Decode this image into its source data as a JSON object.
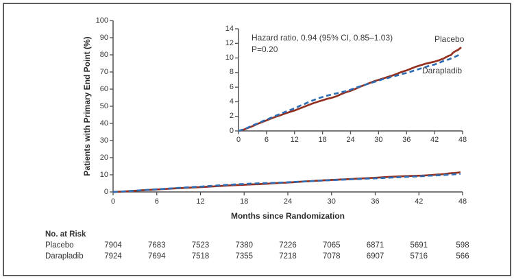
{
  "chart_data": {
    "type": "line",
    "title": "",
    "xlabel": "Months since Randomization",
    "ylabel": "Patients with Primary End Point (%)",
    "xlim": [
      0,
      48
    ],
    "x_ticks": [
      0,
      6,
      12,
      18,
      24,
      30,
      36,
      42,
      48
    ],
    "main_panel": {
      "ylim": [
        0,
        100
      ],
      "y_ticks": [
        0,
        10,
        20,
        30,
        40,
        50,
        60,
        70,
        80,
        90,
        100
      ]
    },
    "inset_panel": {
      "ylim": [
        0,
        14
      ],
      "y_ticks": [
        0,
        2,
        4,
        6,
        8,
        10,
        12,
        14
      ]
    },
    "annotation": {
      "line1": "Hazard ratio, 0.94 (95% CI, 0.85–1.03)",
      "line2": "P=0.20"
    },
    "grid": false,
    "legend_position": "end-of-line-labels",
    "series": [
      {
        "name": "Placebo",
        "color": "#93301f",
        "style": "solid",
        "points": [
          [
            0,
            0
          ],
          [
            1,
            0.15
          ],
          [
            2,
            0.4
          ],
          [
            3,
            0.65
          ],
          [
            4,
            0.95
          ],
          [
            5,
            1.2
          ],
          [
            6,
            1.45
          ],
          [
            7,
            1.7
          ],
          [
            8,
            1.95
          ],
          [
            9,
            2.15
          ],
          [
            10,
            2.4
          ],
          [
            11,
            2.6
          ],
          [
            12,
            2.8
          ],
          [
            13,
            3.05
          ],
          [
            14,
            3.3
          ],
          [
            15,
            3.55
          ],
          [
            16,
            3.8
          ],
          [
            17,
            4.0
          ],
          [
            18,
            4.2
          ],
          [
            19,
            4.4
          ],
          [
            20,
            4.55
          ],
          [
            21,
            4.75
          ],
          [
            22,
            5.05
          ],
          [
            23,
            5.3
          ],
          [
            24,
            5.5
          ],
          [
            25,
            5.75
          ],
          [
            26,
            6.05
          ],
          [
            27,
            6.3
          ],
          [
            28,
            6.55
          ],
          [
            29,
            6.8
          ],
          [
            30,
            7.0
          ],
          [
            31,
            7.2
          ],
          [
            32,
            7.4
          ],
          [
            33,
            7.6
          ],
          [
            34,
            7.85
          ],
          [
            35,
            8.1
          ],
          [
            36,
            8.3
          ],
          [
            37,
            8.55
          ],
          [
            38,
            8.8
          ],
          [
            39,
            9.0
          ],
          [
            40,
            9.2
          ],
          [
            41,
            9.35
          ],
          [
            42,
            9.5
          ],
          [
            43,
            9.7
          ],
          [
            44,
            9.95
          ],
          [
            45,
            10.3
          ],
          [
            45.5,
            10.4
          ],
          [
            46,
            10.75
          ],
          [
            46.5,
            10.95
          ],
          [
            47,
            11.1
          ],
          [
            47.7,
            11.45
          ]
        ]
      },
      {
        "name": "Darapladib",
        "color": "#2e6db4",
        "style": "dashed",
        "points": [
          [
            0,
            0
          ],
          [
            1,
            0.2
          ],
          [
            2,
            0.45
          ],
          [
            3,
            0.75
          ],
          [
            4,
            1.0
          ],
          [
            5,
            1.3
          ],
          [
            6,
            1.55
          ],
          [
            7,
            1.8
          ],
          [
            8,
            2.1
          ],
          [
            9,
            2.35
          ],
          [
            10,
            2.6
          ],
          [
            11,
            2.85
          ],
          [
            12,
            3.1
          ],
          [
            13,
            3.4
          ],
          [
            14,
            3.65
          ],
          [
            15,
            3.95
          ],
          [
            16,
            4.2
          ],
          [
            17,
            4.45
          ],
          [
            18,
            4.65
          ],
          [
            19,
            4.85
          ],
          [
            20,
            5.0
          ],
          [
            21,
            5.15
          ],
          [
            22,
            5.3
          ],
          [
            23,
            5.45
          ],
          [
            24,
            5.65
          ],
          [
            25,
            5.9
          ],
          [
            26,
            6.1
          ],
          [
            27,
            6.3
          ],
          [
            28,
            6.5
          ],
          [
            29,
            6.7
          ],
          [
            30,
            6.9
          ],
          [
            31,
            7.1
          ],
          [
            32,
            7.25
          ],
          [
            33,
            7.45
          ],
          [
            34,
            7.6
          ],
          [
            35,
            7.8
          ],
          [
            36,
            7.95
          ],
          [
            37,
            8.15
          ],
          [
            38,
            8.35
          ],
          [
            39,
            8.55
          ],
          [
            40,
            8.75
          ],
          [
            41,
            8.95
          ],
          [
            42,
            9.1
          ],
          [
            43,
            9.35
          ],
          [
            44,
            9.6
          ],
          [
            45,
            9.8
          ],
          [
            46,
            10.05
          ],
          [
            47,
            10.35
          ],
          [
            47.7,
            10.6
          ]
        ]
      }
    ]
  },
  "risk_table": {
    "title": "No. at Risk",
    "rows": [
      {
        "label": "Placebo",
        "values": [
          "7904",
          "7683",
          "7523",
          "7380",
          "7226",
          "7065",
          "6871",
          "5691",
          "598"
        ]
      },
      {
        "label": "Darapladib",
        "values": [
          "7924",
          "7694",
          "7518",
          "7355",
          "7218",
          "7078",
          "6907",
          "5716",
          "566"
        ]
      }
    ]
  },
  "colors": {
    "placebo": "#93301f",
    "darapladib": "#2e6db4",
    "axis": "#4f4f51",
    "frame_border": "#5b5d5f"
  }
}
